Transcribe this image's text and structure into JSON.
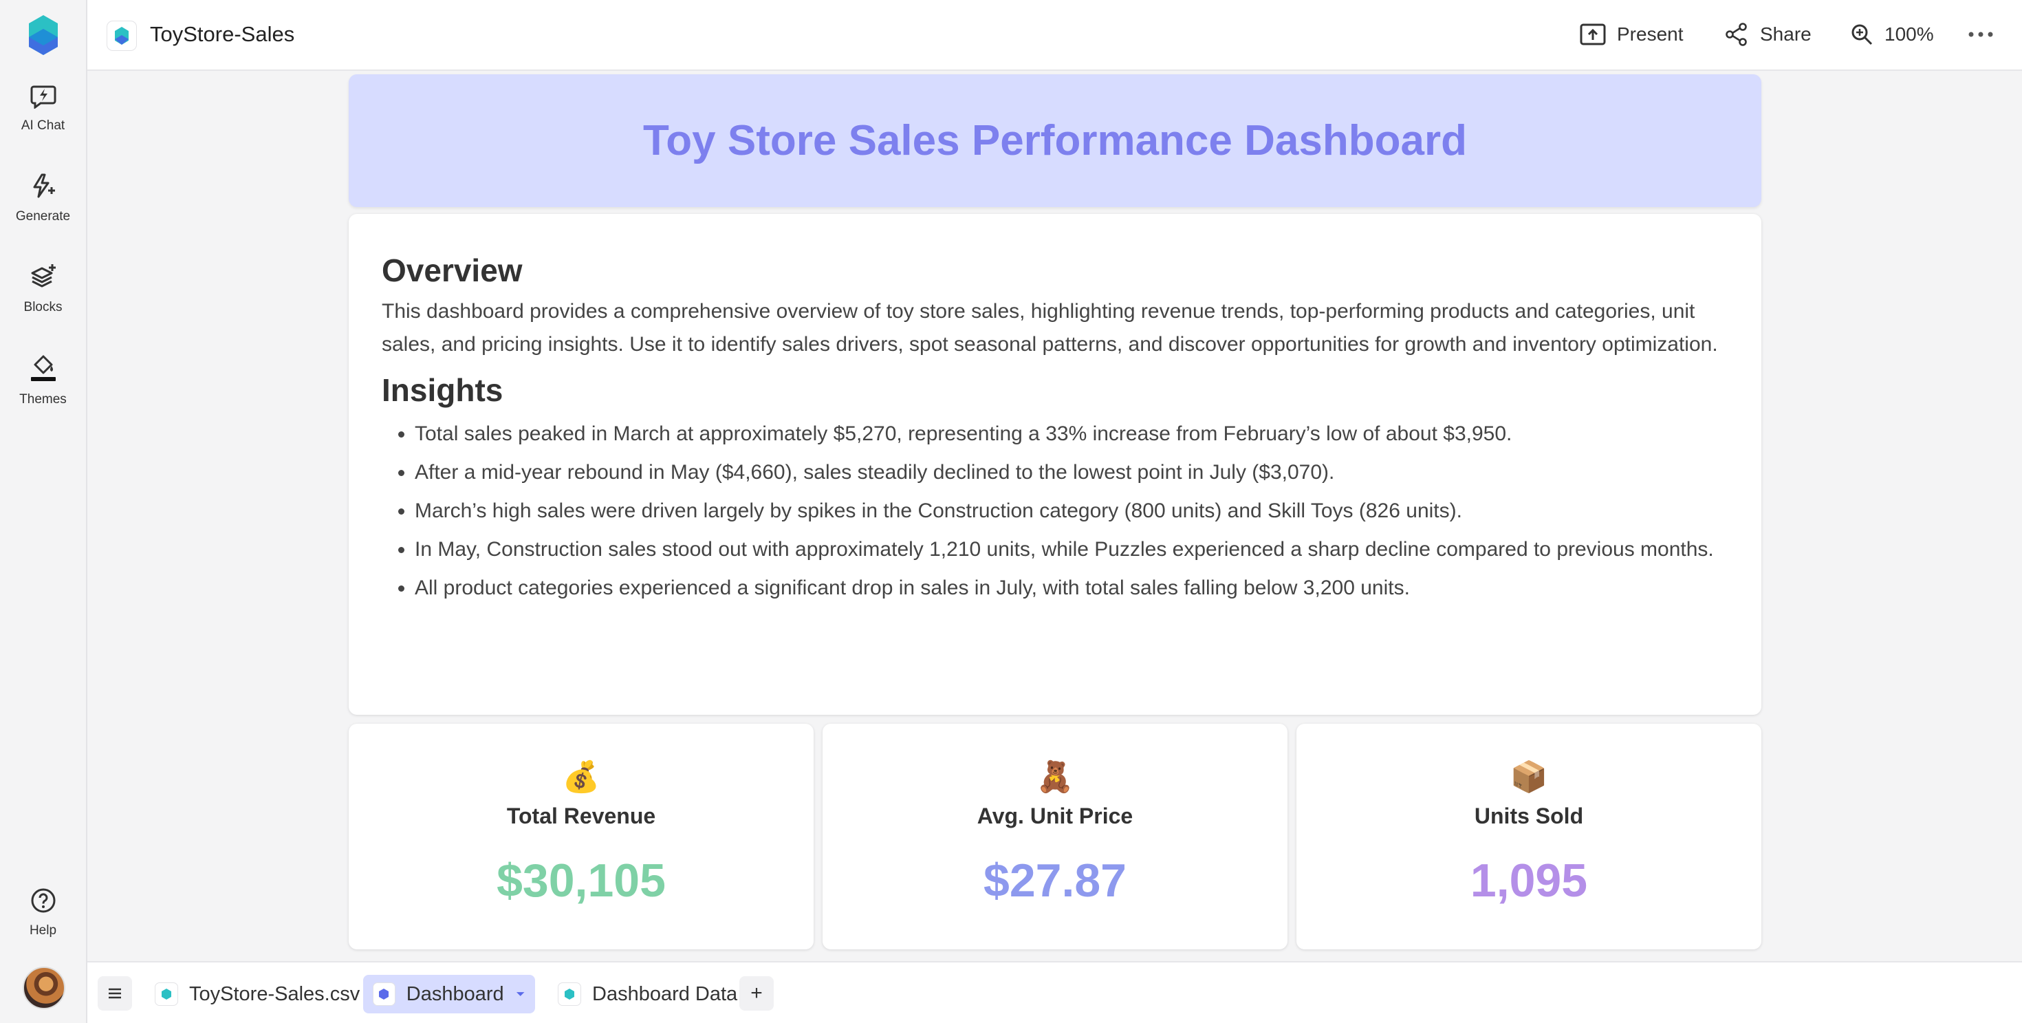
{
  "app": {
    "doc_title": "ToyStore-Sales",
    "accent": "#7d80ee",
    "header_bg": "#d7dcff"
  },
  "rail": {
    "items": [
      {
        "label": "AI Chat",
        "icon": "lightning-chat-icon"
      },
      {
        "label": "Generate",
        "icon": "sparkle-bolt-icon"
      },
      {
        "label": "Blocks",
        "icon": "layers-plus-icon"
      },
      {
        "label": "Themes",
        "icon": "paint-bucket-icon"
      }
    ],
    "help_label": "Help"
  },
  "toolbar": {
    "present_label": "Present",
    "share_label": "Share",
    "zoom_label": "100%"
  },
  "dashboard": {
    "title": "Toy Store Sales Performance Dashboard",
    "overview_heading": "Overview",
    "overview_text": "This dashboard provides a comprehensive overview of toy store sales, highlighting revenue trends, top-performing products and categories, unit sales, and pricing insights. Use it to identify sales drivers, spot seasonal patterns, and discover opportunities for growth and inventory optimization.",
    "insights_heading": "Insights",
    "insights": [
      "Total sales peaked in March at approximately $5,270, representing a 33% increase from February’s low of about $3,950.",
      "After a mid-year rebound in May ($4,660), sales steadily declined to the lowest point in July ($3,070).",
      "March’s high sales were driven largely by spikes in the Construction category (800 units) and Skill Toys (826 units).",
      "In May, Construction sales stood out with approximately 1,210 units, while Puzzles experienced a sharp decline compared to previous months.",
      "All product categories experienced a significant drop in sales in July, with total sales falling below 3,200 units."
    ],
    "kpis": [
      {
        "emoji": "💰",
        "label": "Total Revenue",
        "value": "$30,105",
        "color": "#7fd1a6"
      },
      {
        "emoji": "🧸",
        "label": "Avg. Unit Price",
        "value": "$27.87",
        "color": "#8d99ee"
      },
      {
        "emoji": "📦",
        "label": "Units Sold",
        "value": "1,095",
        "color": "#b48fe8"
      }
    ]
  },
  "tabs": {
    "items": [
      {
        "label": "ToyStore-Sales.csv",
        "active": false
      },
      {
        "label": "Dashboard",
        "active": true
      },
      {
        "label": "Dashboard Data",
        "active": false
      }
    ],
    "add_label": "+"
  }
}
